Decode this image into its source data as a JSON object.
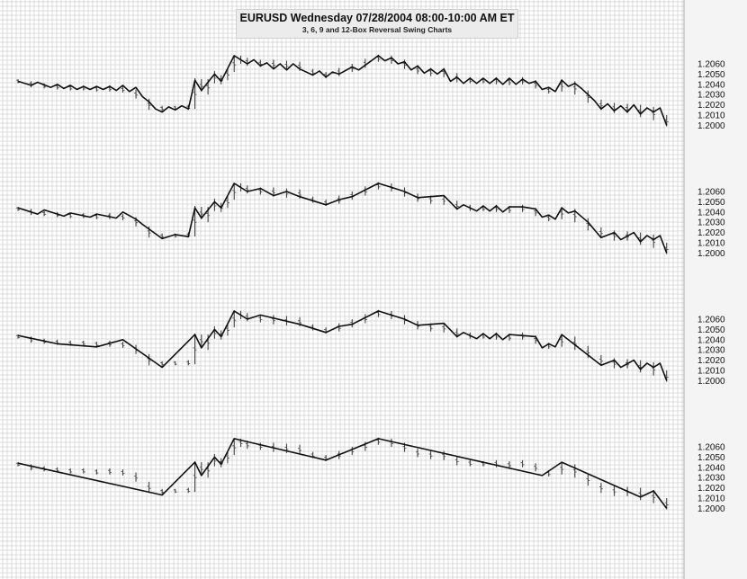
{
  "chart_data": {
    "type": "line",
    "title": "EURUSD Wednesday 07/28/2004 08:00-10:00 AM ET",
    "subtitle": "3, 6, 9 and 12-Box Reversal Swing Charts",
    "colors": {
      "background": "#ffffff",
      "grid": "#bdbdbd",
      "bars": "#444444",
      "swing": "#111111",
      "axis_text": "#111111"
    },
    "grid": true,
    "y_tick_labels": [
      "1.2060",
      "1.2050",
      "1.2040",
      "1.2030",
      "1.2020",
      "1.2010",
      "1.2000"
    ],
    "ylim": [
      1.1995,
      1.2072
    ],
    "xlim": [
      0,
      100
    ],
    "price_bars": [
      {
        "x": 0,
        "h": 1.2045,
        "l": 1.2041
      },
      {
        "x": 2,
        "h": 1.2043,
        "l": 1.2037
      },
      {
        "x": 4,
        "h": 1.2041,
        "l": 1.2036
      },
      {
        "x": 6,
        "h": 1.204,
        "l": 1.2035
      },
      {
        "x": 8,
        "h": 1.2039,
        "l": 1.2034
      },
      {
        "x": 10,
        "h": 1.2039,
        "l": 1.2034
      },
      {
        "x": 12,
        "h": 1.2038,
        "l": 1.2033
      },
      {
        "x": 14,
        "h": 1.2039,
        "l": 1.2033
      },
      {
        "x": 16,
        "h": 1.2038,
        "l": 1.2032
      },
      {
        "x": 18,
        "h": 1.2035,
        "l": 1.2026
      },
      {
        "x": 20,
        "h": 1.2026,
        "l": 1.2015
      },
      {
        "x": 22,
        "h": 1.2019,
        "l": 1.2014
      },
      {
        "x": 24,
        "h": 1.2019,
        "l": 1.2015
      },
      {
        "x": 26,
        "h": 1.202,
        "l": 1.2015
      },
      {
        "x": 27,
        "h": 1.2046,
        "l": 1.2016
      },
      {
        "x": 28,
        "h": 1.2045,
        "l": 1.2033
      },
      {
        "x": 29,
        "h": 1.2045,
        "l": 1.203
      },
      {
        "x": 30,
        "h": 1.2053,
        "l": 1.2041
      },
      {
        "x": 31,
        "h": 1.2049,
        "l": 1.204
      },
      {
        "x": 32,
        "h": 1.2056,
        "l": 1.2044
      },
      {
        "x": 33,
        "h": 1.2068,
        "l": 1.2052
      },
      {
        "x": 34,
        "h": 1.2068,
        "l": 1.206
      },
      {
        "x": 35,
        "h": 1.2066,
        "l": 1.2058
      },
      {
        "x": 37,
        "h": 1.2064,
        "l": 1.2057
      },
      {
        "x": 39,
        "h": 1.2064,
        "l": 1.2055
      },
      {
        "x": 41,
        "h": 1.2063,
        "l": 1.2054
      },
      {
        "x": 43,
        "h": 1.2062,
        "l": 1.2053
      },
      {
        "x": 45,
        "h": 1.2055,
        "l": 1.2049
      },
      {
        "x": 47,
        "h": 1.2052,
        "l": 1.2046
      },
      {
        "x": 49,
        "h": 1.2056,
        "l": 1.2048
      },
      {
        "x": 51,
        "h": 1.206,
        "l": 1.2052
      },
      {
        "x": 53,
        "h": 1.2065,
        "l": 1.2056
      },
      {
        "x": 55,
        "h": 1.2069,
        "l": 1.2062
      },
      {
        "x": 57,
        "h": 1.2068,
        "l": 1.206
      },
      {
        "x": 59,
        "h": 1.2064,
        "l": 1.2055
      },
      {
        "x": 61,
        "h": 1.2058,
        "l": 1.205
      },
      {
        "x": 63,
        "h": 1.2056,
        "l": 1.2048
      },
      {
        "x": 65,
        "h": 1.2056,
        "l": 1.2047
      },
      {
        "x": 67,
        "h": 1.2051,
        "l": 1.2042
      },
      {
        "x": 69,
        "h": 1.2047,
        "l": 1.2041
      },
      {
        "x": 71,
        "h": 1.2046,
        "l": 1.2041
      },
      {
        "x": 73,
        "h": 1.2047,
        "l": 1.204
      },
      {
        "x": 75,
        "h": 1.2046,
        "l": 1.2039
      },
      {
        "x": 77,
        "h": 1.2047,
        "l": 1.204
      },
      {
        "x": 79,
        "h": 1.2044,
        "l": 1.2036
      },
      {
        "x": 81,
        "h": 1.2037,
        "l": 1.2031
      },
      {
        "x": 83,
        "h": 1.2045,
        "l": 1.2033
      },
      {
        "x": 85,
        "h": 1.2043,
        "l": 1.203
      },
      {
        "x": 87,
        "h": 1.2034,
        "l": 1.2022
      },
      {
        "x": 89,
        "h": 1.2025,
        "l": 1.2015
      },
      {
        "x": 91,
        "h": 1.2022,
        "l": 1.2012
      },
      {
        "x": 93,
        "h": 1.2021,
        "l": 1.2012
      },
      {
        "x": 95,
        "h": 1.202,
        "l": 1.2008
      },
      {
        "x": 97,
        "h": 1.2018,
        "l": 1.2005
      },
      {
        "x": 99,
        "h": 1.201,
        "l": 1.1999
      }
    ],
    "panels": [
      {
        "reversal_boxes": 3,
        "swings": [
          [
            0,
            1.2043
          ],
          [
            2,
            1.2039
          ],
          [
            3,
            1.2042
          ],
          [
            5,
            1.2037
          ],
          [
            6,
            1.204
          ],
          [
            7,
            1.2036
          ],
          [
            8,
            1.2039
          ],
          [
            9,
            1.2035
          ],
          [
            10,
            1.2038
          ],
          [
            11,
            1.2035
          ],
          [
            12,
            1.2038
          ],
          [
            13,
            1.2035
          ],
          [
            14,
            1.2038
          ],
          [
            15,
            1.2034
          ],
          [
            16,
            1.2039
          ],
          [
            17,
            1.2033
          ],
          [
            18,
            1.2037
          ],
          [
            19,
            1.2028
          ],
          [
            20,
            1.2023
          ],
          [
            21,
            1.2016
          ],
          [
            22,
            1.2013
          ],
          [
            23,
            1.2018
          ],
          [
            24,
            1.2015
          ],
          [
            25,
            1.2019
          ],
          [
            26,
            1.2016
          ],
          [
            27,
            1.2044
          ],
          [
            28,
            1.2034
          ],
          [
            30,
            1.205
          ],
          [
            31,
            1.2043
          ],
          [
            33,
            1.2068
          ],
          [
            35,
            1.206
          ],
          [
            36,
            1.2064
          ],
          [
            37,
            1.2058
          ],
          [
            38,
            1.2061
          ],
          [
            39,
            1.2055
          ],
          [
            40,
            1.206
          ],
          [
            41,
            1.2054
          ],
          [
            42,
            1.206
          ],
          [
            43,
            1.2055
          ],
          [
            45,
            1.2049
          ],
          [
            46,
            1.2053
          ],
          [
            47,
            1.2047
          ],
          [
            48,
            1.2052
          ],
          [
            49,
            1.205
          ],
          [
            51,
            1.2057
          ],
          [
            52,
            1.2054
          ],
          [
            55,
            1.2068
          ],
          [
            56,
            1.2063
          ],
          [
            57,
            1.2066
          ],
          [
            58,
            1.206
          ],
          [
            59,
            1.2062
          ],
          [
            60,
            1.2054
          ],
          [
            61,
            1.2058
          ],
          [
            62,
            1.2051
          ],
          [
            63,
            1.2055
          ],
          [
            64,
            1.205
          ],
          [
            65,
            1.2055
          ],
          [
            66,
            1.2043
          ],
          [
            67,
            1.2047
          ],
          [
            68,
            1.2041
          ],
          [
            69,
            1.2046
          ],
          [
            70,
            1.2041
          ],
          [
            71,
            1.2046
          ],
          [
            72,
            1.2041
          ],
          [
            73,
            1.2046
          ],
          [
            74,
            1.204
          ],
          [
            75,
            1.2046
          ],
          [
            76,
            1.204
          ],
          [
            77,
            1.2045
          ],
          [
            78,
            1.2041
          ],
          [
            79,
            1.2043
          ],
          [
            80,
            1.2035
          ],
          [
            81,
            1.2037
          ],
          [
            82,
            1.2033
          ],
          [
            83,
            1.2044
          ],
          [
            84,
            1.2038
          ],
          [
            85,
            1.2041
          ],
          [
            86,
            1.2036
          ],
          [
            87,
            1.203
          ],
          [
            88,
            1.2024
          ],
          [
            89,
            1.2016
          ],
          [
            90,
            1.2021
          ],
          [
            91,
            1.2014
          ],
          [
            92,
            1.2019
          ],
          [
            93,
            1.2013
          ],
          [
            94,
            1.202
          ],
          [
            95,
            1.2011
          ],
          [
            96,
            1.2017
          ],
          [
            97,
            1.2013
          ],
          [
            98,
            1.2017
          ],
          [
            99,
            1.2
          ]
        ]
      },
      {
        "reversal_boxes": 6,
        "swings": [
          [
            0,
            1.2044
          ],
          [
            3,
            1.2038
          ],
          [
            4,
            1.2042
          ],
          [
            7,
            1.2036
          ],
          [
            8,
            1.2039
          ],
          [
            11,
            1.2035
          ],
          [
            12,
            1.2038
          ],
          [
            15,
            1.2034
          ],
          [
            16,
            1.204
          ],
          [
            18,
            1.2033
          ],
          [
            19,
            1.2028
          ],
          [
            22,
            1.2014
          ],
          [
            24,
            1.2018
          ],
          [
            26,
            1.2016
          ],
          [
            27,
            1.2044
          ],
          [
            28,
            1.2034
          ],
          [
            30,
            1.205
          ],
          [
            31,
            1.2044
          ],
          [
            33,
            1.2068
          ],
          [
            35,
            1.206
          ],
          [
            37,
            1.2063
          ],
          [
            39,
            1.2056
          ],
          [
            41,
            1.206
          ],
          [
            43,
            1.2055
          ],
          [
            47,
            1.2047
          ],
          [
            49,
            1.2052
          ],
          [
            51,
            1.2055
          ],
          [
            55,
            1.2068
          ],
          [
            57,
            1.2064
          ],
          [
            59,
            1.206
          ],
          [
            61,
            1.2054
          ],
          [
            63,
            1.2055
          ],
          [
            65,
            1.2056
          ],
          [
            67,
            1.2043
          ],
          [
            68,
            1.2047
          ],
          [
            70,
            1.2041
          ],
          [
            71,
            1.2046
          ],
          [
            72,
            1.2041
          ],
          [
            73,
            1.2046
          ],
          [
            74,
            1.204
          ],
          [
            75,
            1.2045
          ],
          [
            77,
            1.2045
          ],
          [
            79,
            1.2043
          ],
          [
            80,
            1.2035
          ],
          [
            81,
            1.2037
          ],
          [
            82,
            1.2033
          ],
          [
            83,
            1.2044
          ],
          [
            84,
            1.2039
          ],
          [
            85,
            1.2041
          ],
          [
            87,
            1.203
          ],
          [
            89,
            1.2015
          ],
          [
            91,
            1.202
          ],
          [
            92,
            1.2013
          ],
          [
            94,
            1.202
          ],
          [
            95,
            1.2011
          ],
          [
            96,
            1.2017
          ],
          [
            97,
            1.2013
          ],
          [
            98,
            1.2017
          ],
          [
            99,
            1.2
          ]
        ]
      },
      {
        "reversal_boxes": 9,
        "swings": [
          [
            0,
            1.2044
          ],
          [
            6,
            1.2036
          ],
          [
            12,
            1.2033
          ],
          [
            16,
            1.204
          ],
          [
            22,
            1.2013
          ],
          [
            27,
            1.2045
          ],
          [
            28,
            1.2032
          ],
          [
            30,
            1.205
          ],
          [
            31,
            1.2043
          ],
          [
            33,
            1.2068
          ],
          [
            35,
            1.206
          ],
          [
            37,
            1.2064
          ],
          [
            43,
            1.2055
          ],
          [
            47,
            1.2047
          ],
          [
            49,
            1.2053
          ],
          [
            51,
            1.2055
          ],
          [
            55,
            1.2068
          ],
          [
            59,
            1.206
          ],
          [
            61,
            1.2054
          ],
          [
            63,
            1.2055
          ],
          [
            65,
            1.2056
          ],
          [
            67,
            1.2043
          ],
          [
            68,
            1.2047
          ],
          [
            70,
            1.2041
          ],
          [
            71,
            1.2046
          ],
          [
            72,
            1.2041
          ],
          [
            73,
            1.2046
          ],
          [
            74,
            1.204
          ],
          [
            75,
            1.2045
          ],
          [
            79,
            1.2043
          ],
          [
            80,
            1.2032
          ],
          [
            81,
            1.2036
          ],
          [
            82,
            1.2033
          ],
          [
            83,
            1.2045
          ],
          [
            89,
            1.2015
          ],
          [
            91,
            1.202
          ],
          [
            92,
            1.2013
          ],
          [
            94,
            1.202
          ],
          [
            95,
            1.2011
          ],
          [
            96,
            1.2017
          ],
          [
            97,
            1.2013
          ],
          [
            98,
            1.2017
          ],
          [
            99,
            1.2
          ]
        ]
      },
      {
        "reversal_boxes": 12,
        "swings": [
          [
            0,
            1.2044
          ],
          [
            22,
            1.2013
          ],
          [
            27,
            1.2045
          ],
          [
            28,
            1.2032
          ],
          [
            30,
            1.205
          ],
          [
            31,
            1.2043
          ],
          [
            33,
            1.2068
          ],
          [
            47,
            1.2047
          ],
          [
            55,
            1.2068
          ],
          [
            80,
            1.2032
          ],
          [
            83,
            1.2045
          ],
          [
            95,
            1.2011
          ],
          [
            97,
            1.2017
          ],
          [
            99,
            1.2
          ]
        ]
      }
    ]
  }
}
